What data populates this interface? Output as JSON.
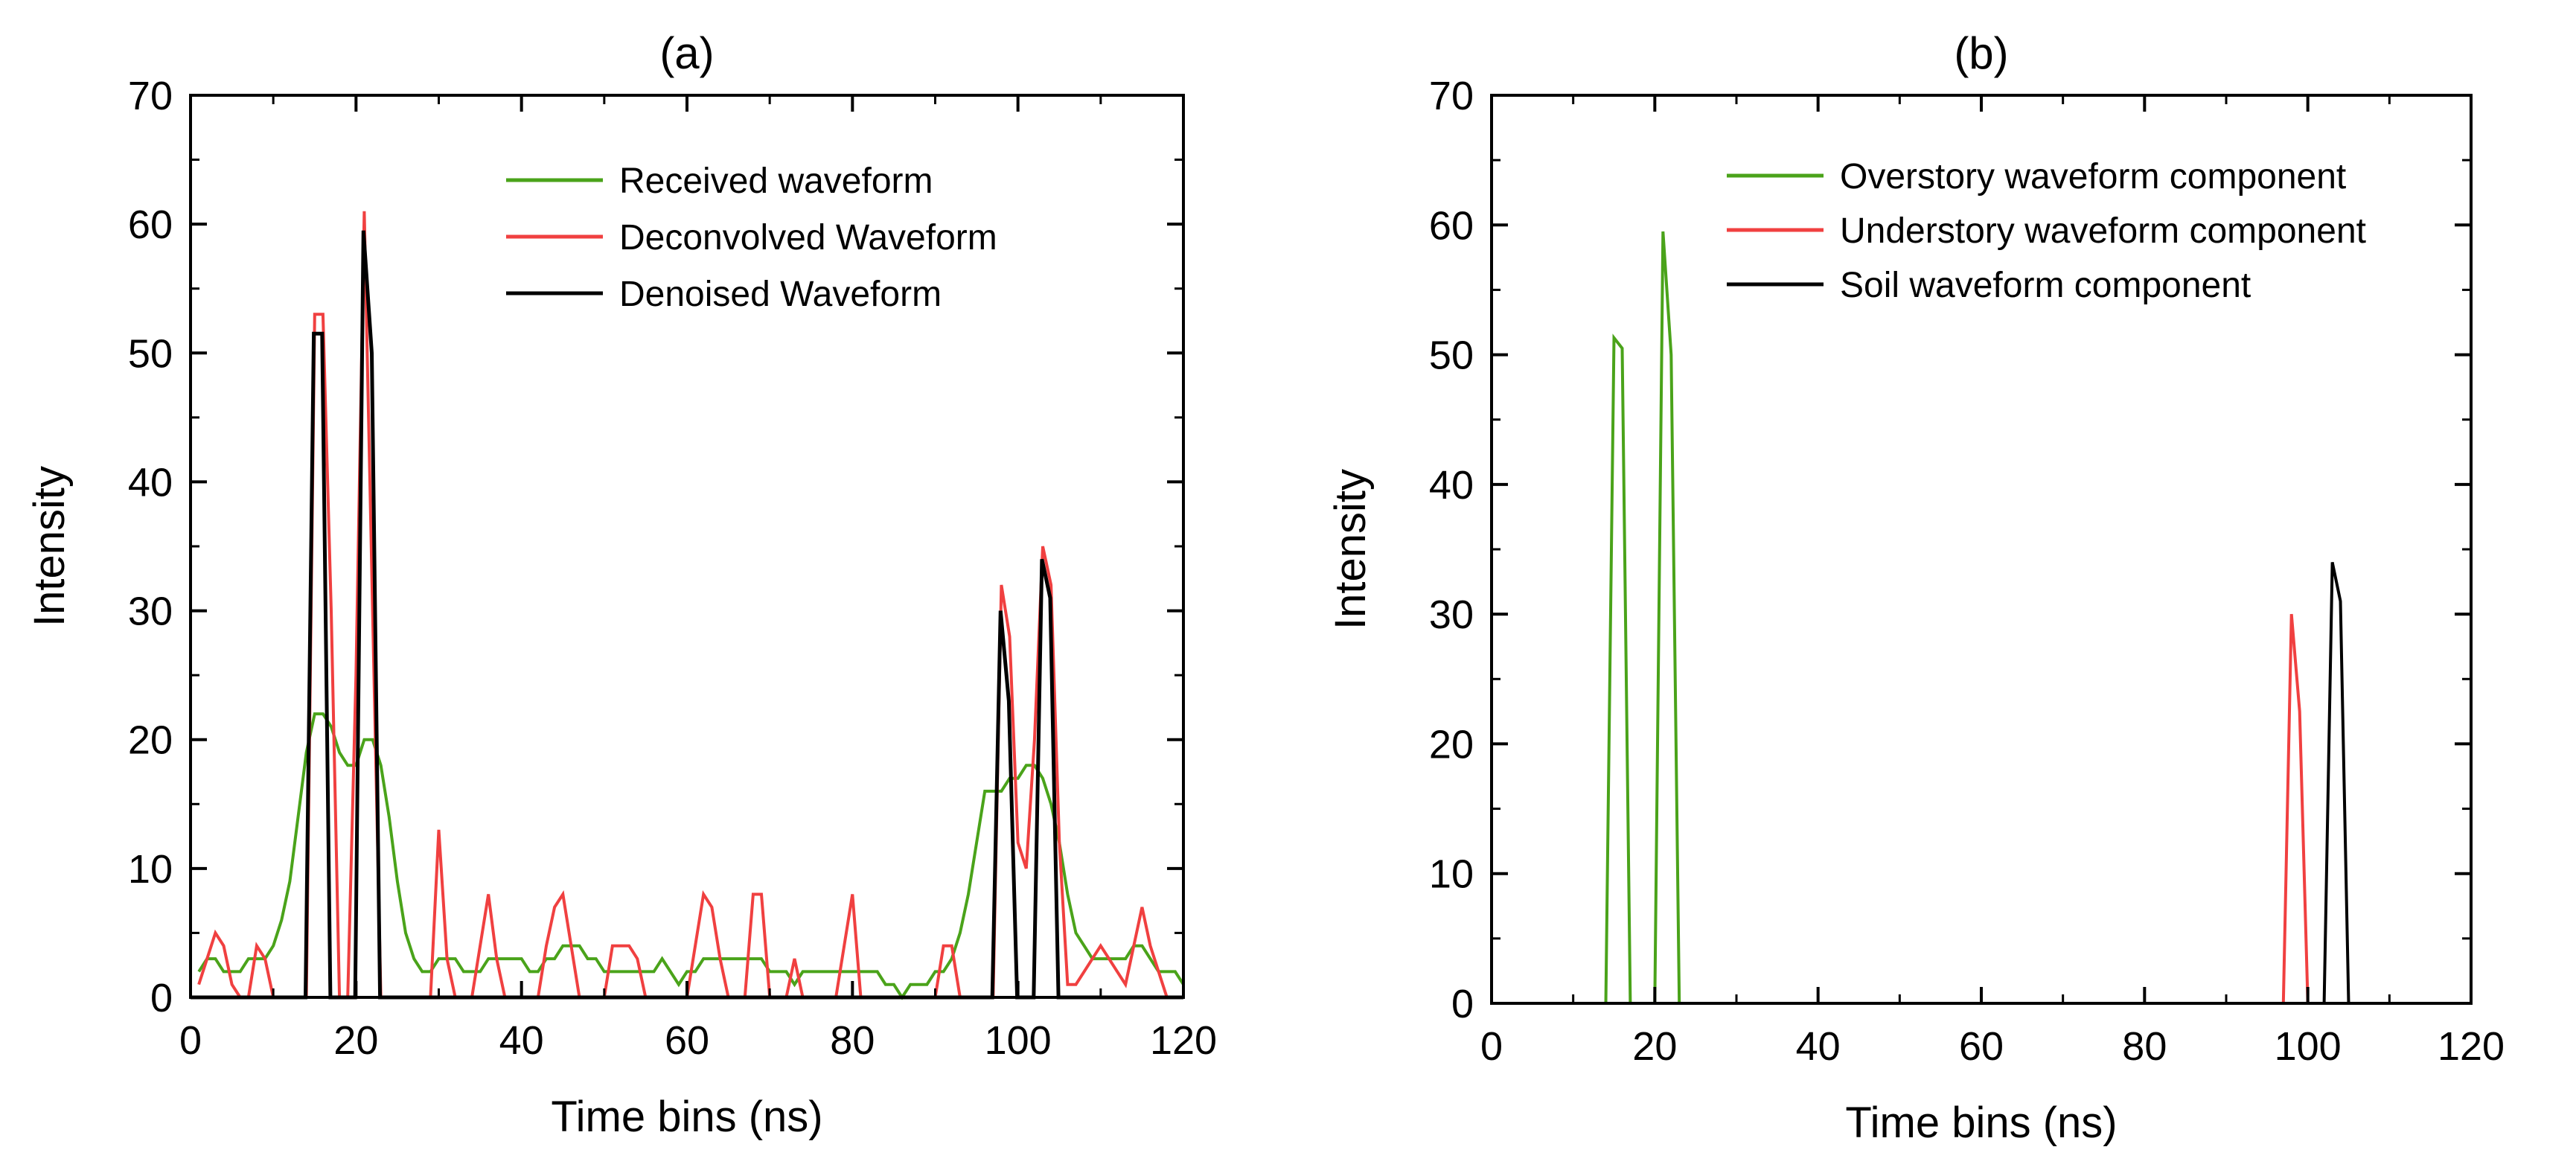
{
  "chart_data": [
    {
      "type": "line",
      "title": "(a)",
      "xlabel": "Time bins (ns)",
      "ylabel": "Intensity",
      "xlim": [
        0,
        120
      ],
      "ylim": [
        0,
        70
      ],
      "xticks": [
        "0",
        "20",
        "40",
        "60",
        "80",
        "100",
        "120"
      ],
      "yticks": [
        "0",
        "10",
        "20",
        "30",
        "40",
        "50",
        "60",
        "70"
      ],
      "legend_position": "top-right",
      "series": [
        {
          "name": "Received waveform",
          "color": "#4aa31a",
          "x": [
            1,
            2,
            3,
            4,
            5,
            6,
            7,
            8,
            9,
            10,
            11,
            12,
            13,
            14,
            15,
            16,
            17,
            18,
            19,
            20,
            21,
            22,
            23,
            24,
            25,
            26,
            27,
            28,
            29,
            30,
            31,
            32,
            33,
            34,
            35,
            36,
            37,
            38,
            39,
            40,
            41,
            42,
            43,
            44,
            45,
            46,
            47,
            48,
            49,
            50,
            51,
            52,
            53,
            54,
            55,
            56,
            57,
            58,
            59,
            60,
            61,
            62,
            63,
            64,
            65,
            66,
            67,
            68,
            69,
            70,
            71,
            72,
            73,
            74,
            75,
            76,
            77,
            78,
            79,
            80,
            81,
            82,
            83,
            84,
            85,
            86,
            87,
            88,
            89,
            90,
            91,
            92,
            93,
            94,
            95,
            96,
            97,
            98,
            99,
            100,
            101,
            102,
            103,
            104,
            105,
            106,
            107,
            108,
            109,
            110,
            111,
            112,
            113,
            114,
            115,
            116,
            117,
            118,
            119,
            120
          ],
          "y": [
            2,
            3,
            3,
            2,
            2,
            2,
            3,
            3,
            3,
            4,
            6,
            9,
            14,
            19,
            22,
            22,
            21,
            19,
            18,
            18,
            20,
            20,
            18,
            14,
            9,
            5,
            3,
            2,
            2,
            3,
            3,
            3,
            2,
            2,
            2,
            3,
            3,
            3,
            3,
            3,
            2,
            2,
            3,
            3,
            4,
            4,
            4,
            3,
            3,
            2,
            2,
            2,
            2,
            2,
            2,
            2,
            3,
            2,
            1,
            2,
            2,
            3,
            3,
            3,
            3,
            3,
            3,
            3,
            3,
            2,
            2,
            2,
            1,
            2,
            2,
            2,
            2,
            2,
            2,
            2,
            2,
            2,
            2,
            1,
            1,
            0,
            1,
            1,
            1,
            2,
            2,
            3,
            5,
            8,
            12,
            16,
            16,
            16,
            17,
            17,
            18,
            18,
            17,
            15,
            12,
            8,
            5,
            4,
            3,
            3,
            3,
            3,
            3,
            4,
            4,
            3,
            2,
            2,
            2,
            1
          ]
        },
        {
          "name": "Deconvolved Waveform",
          "color": "#f04040",
          "x": [
            1,
            2,
            3,
            4,
            5,
            6,
            7,
            8,
            9,
            10,
            11,
            12,
            13,
            14,
            15,
            16,
            17,
            18,
            19,
            20,
            21,
            22,
            23,
            24,
            25,
            26,
            27,
            28,
            29,
            30,
            31,
            32,
            33,
            34,
            35,
            36,
            37,
            38,
            39,
            40,
            41,
            42,
            43,
            44,
            45,
            46,
            47,
            48,
            49,
            50,
            51,
            52,
            53,
            54,
            55,
            56,
            57,
            58,
            59,
            60,
            61,
            62,
            63,
            64,
            65,
            66,
            67,
            68,
            69,
            70,
            71,
            72,
            73,
            74,
            75,
            76,
            77,
            78,
            79,
            80,
            81,
            82,
            83,
            84,
            85,
            86,
            87,
            88,
            89,
            90,
            91,
            92,
            93,
            94,
            95,
            96,
            97,
            98,
            99,
            100,
            101,
            102,
            103,
            104,
            105,
            106,
            107,
            108,
            109,
            110,
            111,
            112,
            113,
            114,
            115,
            116,
            117,
            118,
            119,
            120
          ],
          "y": [
            1,
            3,
            5,
            4,
            1,
            0,
            0,
            4,
            3,
            0,
            0,
            0,
            0,
            0,
            53,
            53,
            30,
            0,
            0,
            25,
            61,
            30,
            0,
            0,
            0,
            0,
            0,
            0,
            0,
            13,
            3,
            0,
            0,
            0,
            4,
            8,
            3,
            0,
            0,
            0,
            0,
            0,
            4,
            7,
            8,
            4,
            0,
            0,
            0,
            0,
            4,
            4,
            4,
            3,
            0,
            0,
            0,
            0,
            0,
            0,
            4,
            8,
            7,
            3,
            0,
            0,
            0,
            8,
            8,
            0,
            0,
            0,
            3,
            0,
            0,
            0,
            0,
            0,
            4,
            8,
            0,
            0,
            0,
            0,
            0,
            0,
            0,
            0,
            0,
            0,
            4,
            4,
            0,
            0,
            0,
            0,
            0,
            32,
            28,
            12,
            10,
            20,
            35,
            32,
            12,
            1,
            1,
            2,
            3,
            4,
            3,
            2,
            1,
            4,
            7,
            4,
            2,
            0,
            0,
            0
          ]
        },
        {
          "name": "Denoised Waveform",
          "color": "#000000",
          "x": [
            0,
            13.9,
            14.9,
            15.9,
            16.9,
            17.9,
            19.9,
            20.9,
            21.9,
            22.9,
            23.9,
            96.9,
            97.9,
            98.9,
            99.9,
            100.9,
            101.9,
            102.9,
            103.9,
            104.9,
            105.9,
            120
          ],
          "y": [
            0,
            0,
            51.5,
            51.5,
            0,
            0,
            0,
            59.5,
            50,
            0,
            0,
            0,
            30,
            23,
            0,
            0,
            0,
            34,
            31,
            0,
            0,
            0
          ]
        }
      ]
    },
    {
      "type": "line",
      "title": "(b)",
      "xlabel": "Time bins (ns)",
      "ylabel": "Intensity",
      "xlim": [
        0,
        120
      ],
      "ylim": [
        0,
        70
      ],
      "xticks": [
        "0",
        "20",
        "40",
        "60",
        "80",
        "100",
        "120"
      ],
      "yticks": [
        "0",
        "10",
        "20",
        "30",
        "40",
        "50",
        "60",
        "70"
      ],
      "legend_position": "top-left",
      "series": [
        {
          "name": "Overstory waveform component",
          "color": "#4aa31a",
          "x": [
            0,
            14,
            15,
            16,
            17,
            20,
            21,
            22,
            23,
            78
          ],
          "y": [
            0,
            0,
            51.3,
            50.5,
            0,
            0,
            59.5,
            50,
            0,
            0
          ]
        },
        {
          "name": "Understory waveform component",
          "color": "#f04040",
          "x": [
            78,
            97,
            98,
            99,
            100,
            101
          ],
          "y": [
            0,
            0,
            30,
            22.5,
            0,
            0
          ]
        },
        {
          "name": "Soil waveform component",
          "color": "#000000",
          "x": [
            101,
            102,
            103,
            104,
            105,
            120
          ],
          "y": [
            0,
            0,
            34,
            31,
            0,
            0
          ]
        }
      ]
    }
  ]
}
